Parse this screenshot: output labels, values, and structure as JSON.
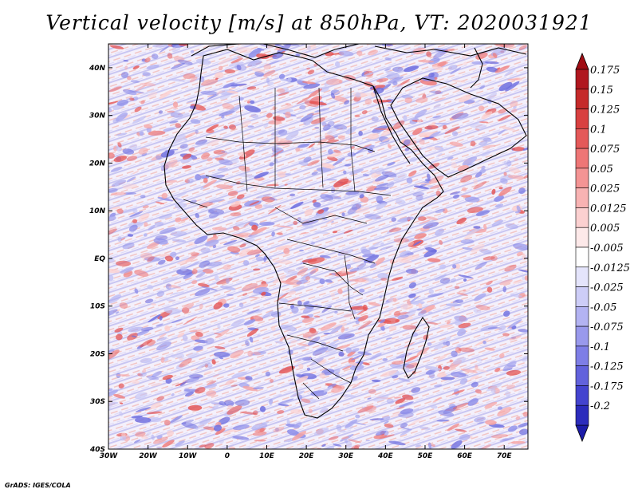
{
  "title": "Vertical velocity [m/s] at 850hPa, VT: 2020031921",
  "credit": "GrADS: IGES/COLA",
  "map": {
    "lon_range": [
      -30,
      76
    ],
    "lat_range": [
      -40,
      45
    ],
    "lon_ticks": [
      {
        "value": -30,
        "label": "30W"
      },
      {
        "value": -20,
        "label": "20W"
      },
      {
        "value": -10,
        "label": "10W"
      },
      {
        "value": 0,
        "label": "0"
      },
      {
        "value": 10,
        "label": "10E"
      },
      {
        "value": 20,
        "label": "20E"
      },
      {
        "value": 30,
        "label": "30E"
      },
      {
        "value": 40,
        "label": "40E"
      },
      {
        "value": 50,
        "label": "50E"
      },
      {
        "value": 60,
        "label": "60E"
      },
      {
        "value": 70,
        "label": "70E"
      }
    ],
    "lat_ticks": [
      {
        "value": 40,
        "label": "40N"
      },
      {
        "value": 30,
        "label": "30N"
      },
      {
        "value": 20,
        "label": "20N"
      },
      {
        "value": 10,
        "label": "10N"
      },
      {
        "value": 0,
        "label": "EQ"
      },
      {
        "value": -10,
        "label": "10S"
      },
      {
        "value": -20,
        "label": "20S"
      },
      {
        "value": -30,
        "label": "30S"
      },
      {
        "value": -40,
        "label": "40S"
      }
    ]
  },
  "colorbar": {
    "levels": [
      {
        "label": "0.175",
        "color": "#b0171f"
      },
      {
        "label": "0.15",
        "color": "#c52a2a"
      },
      {
        "label": "0.125",
        "color": "#d84040"
      },
      {
        "label": "0.1",
        "color": "#e45959"
      },
      {
        "label": "0.075",
        "color": "#ee7676"
      },
      {
        "label": "0.05",
        "color": "#f49494"
      },
      {
        "label": "0.025",
        "color": "#f8b3b3"
      },
      {
        "label": "0.0125",
        "color": "#fbd0d0"
      },
      {
        "label": "0.005",
        "color": "#fde9e9"
      },
      {
        "label": "-0.005",
        "color": "#ffffff"
      },
      {
        "label": "-0.0125",
        "color": "#e4e4fb"
      },
      {
        "label": "-0.025",
        "color": "#cdcdf7"
      },
      {
        "label": "-0.05",
        "color": "#b3b3f2"
      },
      {
        "label": "-0.075",
        "color": "#9999ec"
      },
      {
        "label": "-0.1",
        "color": "#7e7ee6"
      },
      {
        "label": "-0.125",
        "color": "#6262dc"
      },
      {
        "label": "-0.175",
        "color": "#4444cf"
      },
      {
        "label": "-0.2",
        "color": "#2c2cbc"
      }
    ],
    "top_arrow_color": "#a00d14",
    "bottom_arrow_color": "#1c1ca8"
  }
}
